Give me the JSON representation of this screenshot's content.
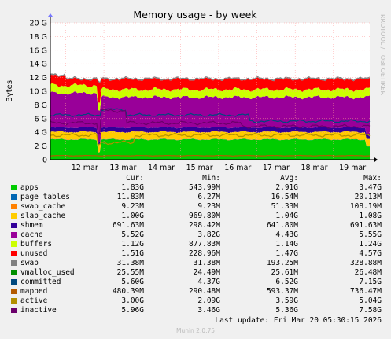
{
  "chart_data": {
    "type": "area",
    "title": "Memory usage - by week",
    "ylabel": "Bytes",
    "watermark": "RRDTOOL / TOBI OETIKER",
    "yticks": [
      "0",
      "2 G",
      "4 G",
      "6 G",
      "8 G",
      "10 G",
      "12 G",
      "14 G",
      "16 G",
      "18 G",
      "20 G"
    ],
    "ylim": [
      0,
      20
    ],
    "xticks": [
      "12 mar",
      "13 mar",
      "14 mar",
      "15 mar",
      "16 mar",
      "17 mar",
      "18 mar",
      "19 mar"
    ],
    "x_range_days": [
      11.6,
      19.95
    ],
    "grid": true,
    "legend_columns": [
      "Cur:",
      "Min:",
      "Avg:",
      "Max:"
    ],
    "series": [
      {
        "name": "apps",
        "color": "#00cc00",
        "kind": "stack",
        "cur": "1.83G",
        "min": "543.99M",
        "avg": "2.91G",
        "max": "3.47G",
        "base": 2.95
      },
      {
        "name": "page_tables",
        "color": "#0066b3",
        "kind": "stack",
        "cur": "11.83M",
        "min": "6.27M",
        "avg": "16.54M",
        "max": "20.13M",
        "base": 0.016
      },
      {
        "name": "swap_cache",
        "color": "#ff8000",
        "kind": "stack",
        "cur": "9.23M",
        "min": "9.23M",
        "avg": "51.33M",
        "max": "108.19M",
        "base": 0.05
      },
      {
        "name": "slab_cache",
        "color": "#ffcc00",
        "kind": "stack",
        "cur": "1.00G",
        "min": "969.80M",
        "avg": "1.04G",
        "max": "1.08G",
        "base": 1.04
      },
      {
        "name": "shmem",
        "color": "#330099",
        "kind": "stack",
        "cur": "691.63M",
        "min": "298.42M",
        "avg": "641.80M",
        "max": "691.63M",
        "base": 0.64
      },
      {
        "name": "cache",
        "color": "#990099",
        "kind": "stack",
        "cur": "5.52G",
        "min": "3.82G",
        "avg": "4.43G",
        "max": "5.55G",
        "base": 4.43
      },
      {
        "name": "buffers",
        "color": "#ccff00",
        "kind": "stack",
        "cur": "1.12G",
        "min": "877.83M",
        "avg": "1.14G",
        "max": "1.24G",
        "base": 1.14
      },
      {
        "name": "unused",
        "color": "#ff0000",
        "kind": "stack",
        "cur": "1.51G",
        "min": "228.96M",
        "avg": "1.47G",
        "max": "4.57G",
        "base": 1.47
      },
      {
        "name": "swap",
        "color": "#808080",
        "kind": "stack",
        "cur": "31.38M",
        "min": "31.38M",
        "avg": "193.25M",
        "max": "328.88M",
        "base": 0.19
      },
      {
        "name": "vmalloc_used",
        "color": "#008f00",
        "kind": "line",
        "cur": "25.55M",
        "min": "24.49M",
        "avg": "25.61M",
        "max": "26.48M",
        "base": 0.025
      },
      {
        "name": "committed",
        "color": "#00487d",
        "kind": "line",
        "cur": "5.60G",
        "min": "4.37G",
        "avg": "6.52G",
        "max": "7.15G",
        "base": 6.52
      },
      {
        "name": "mapped",
        "color": "#b35a00",
        "kind": "line",
        "cur": "480.39M",
        "min": "290.48M",
        "avg": "593.37M",
        "max": "736.47M",
        "base": 0.59
      },
      {
        "name": "active",
        "color": "#b38f00",
        "kind": "line",
        "cur": "3.00G",
        "min": "2.09G",
        "avg": "3.59G",
        "max": "5.04G",
        "base": 3.59
      },
      {
        "name": "inactive",
        "color": "#6b006b",
        "kind": "line",
        "cur": "5.96G",
        "min": "3.46G",
        "avg": "5.36G",
        "max": "7.58G",
        "base": 5.36
      }
    ],
    "last_update": "Last update: Fri Mar 20 05:30:15 2026",
    "footer": "Munin 2.0.75"
  }
}
